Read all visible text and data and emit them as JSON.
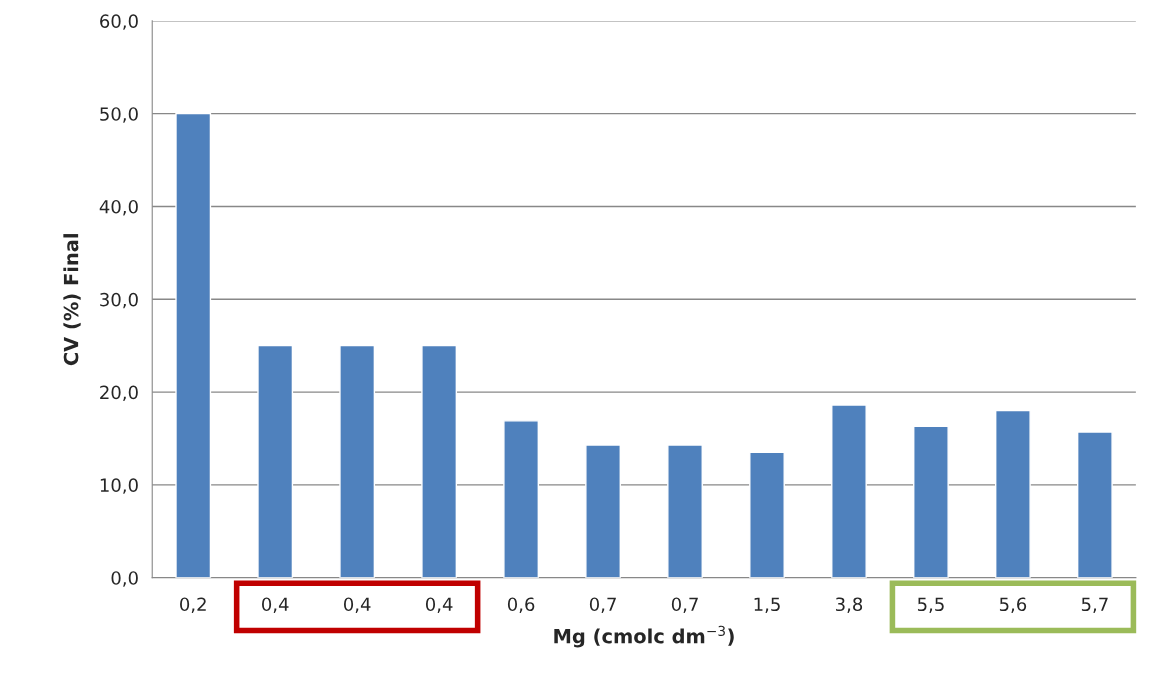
{
  "chart_data": {
    "type": "bar",
    "xlabel": "Mg (cmolc dm$^{−3}$)",
    "ylabel": "CV (%) Final",
    "categories": [
      "0,2",
      "0,4",
      "0,4",
      "0,4",
      "0,6",
      "0,7",
      "0,7",
      "1,5",
      "3,8",
      "5,5",
      "5,6",
      "5,7"
    ],
    "values": [
      50.0,
      25.0,
      25.0,
      25.0,
      16.9,
      14.3,
      14.3,
      13.5,
      18.6,
      16.3,
      18.0,
      15.7
    ],
    "color": "#4f81bd",
    "ylim": [
      0,
      60
    ],
    "yticks": [
      {
        "value": 0,
        "label": "0,0"
      },
      {
        "value": 10,
        "label": "10,0"
      },
      {
        "value": 20,
        "label": "20,0"
      },
      {
        "value": 30,
        "label": "30,0"
      },
      {
        "value": 40,
        "label": "40,0"
      },
      {
        "value": 50,
        "label": "50,0"
      },
      {
        "value": 60,
        "label": "60,0"
      }
    ],
    "grid": "y"
  }
}
